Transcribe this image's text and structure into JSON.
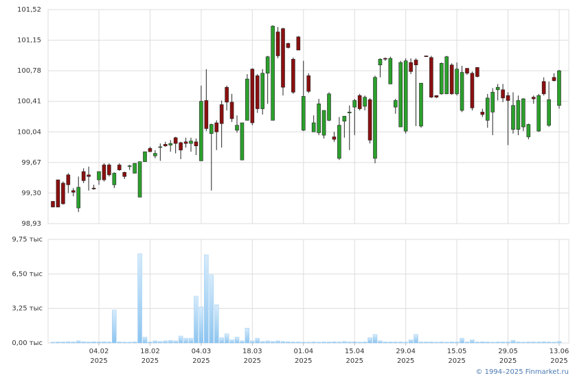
{
  "chart_data": {
    "type": "candlestick",
    "x": [
      "2025-01-22",
      "2025-01-23",
      "2025-01-24",
      "2025-01-27",
      "2025-01-28",
      "2025-01-29",
      "2025-01-30",
      "2025-01-31",
      "2025-02-03",
      "2025-02-04",
      "2025-02-05",
      "2025-02-06",
      "2025-02-07",
      "2025-02-10",
      "2025-02-11",
      "2025-02-12",
      "2025-02-13",
      "2025-02-14",
      "2025-02-17",
      "2025-02-18",
      "2025-02-19",
      "2025-02-20",
      "2025-02-21",
      "2025-02-24",
      "2025-02-25",
      "2025-02-26",
      "2025-02-27",
      "2025-02-28",
      "2025-03-03",
      "2025-03-04",
      "2025-03-05",
      "2025-03-06",
      "2025-03-07",
      "2025-03-10",
      "2025-03-11",
      "2025-03-12",
      "2025-03-13",
      "2025-03-14",
      "2025-03-17",
      "2025-03-18",
      "2025-03-19",
      "2025-03-20",
      "2025-03-21",
      "2025-03-24",
      "2025-03-25",
      "2025-03-26",
      "2025-03-27",
      "2025-03-28",
      "2025-03-31",
      "2025-04-01",
      "2025-04-02",
      "2025-04-03",
      "2025-04-04",
      "2025-04-07",
      "2025-04-08",
      "2025-04-09",
      "2025-04-10",
      "2025-04-11",
      "2025-04-14",
      "2025-04-15",
      "2025-04-16",
      "2025-04-17",
      "2025-04-18",
      "2025-04-21",
      "2025-04-22",
      "2025-04-23",
      "2025-04-24",
      "2025-04-25",
      "2025-04-28",
      "2025-04-29",
      "2025-04-30",
      "2025-05-02",
      "2025-05-05",
      "2025-05-06",
      "2025-05-07",
      "2025-05-08",
      "2025-05-12",
      "2025-05-13",
      "2025-05-14",
      "2025-05-15",
      "2025-05-16",
      "2025-05-19",
      "2025-05-20",
      "2025-05-21",
      "2025-05-22",
      "2025-05-23",
      "2025-05-26",
      "2025-05-27",
      "2025-05-28",
      "2025-05-29",
      "2025-05-30",
      "2025-06-02",
      "2025-06-03",
      "2025-06-04",
      "2025-06-05",
      "2025-06-06",
      "2025-06-09",
      "2025-06-10",
      "2025-06-11",
      "2025-06-13"
    ],
    "open": [
      99.2,
      99.46,
      99.42,
      99.52,
      99.33,
      99.12,
      99.56,
      99.52,
      99.36,
      99.46,
      99.64,
      99.64,
      99.4,
      99.64,
      99.55,
      99.62,
      99.54,
      99.25,
      99.68,
      99.84,
      99.75,
      99.86,
      99.89,
      99.88,
      99.97,
      99.91,
      99.92,
      99.9,
      99.92,
      99.69,
      100.42,
      100.02,
      100.15,
      100.37,
      100.58,
      100.4,
      100.06,
      99.7,
      100.18,
      100.8,
      100.72,
      100.32,
      100.75,
      100.18,
      101.25,
      101.29,
      101.11,
      100.92,
      101.19,
      100.06,
      100.72,
      100.04,
      100.03,
      100.0,
      100.18,
      99.98,
      99.72,
      100.17,
      100.27,
      100.34,
      100.48,
      100.35,
      100.43,
      99.72,
      100.85,
      100.93,
      100.62,
      100.34,
      100.1,
      100.05,
      100.88,
      100.91,
      100.11,
      100.96,
      100.94,
      100.48,
      100.5,
      100.5,
      100.85,
      100.5,
      100.3,
      100.81,
      100.75,
      100.82,
      100.28,
      100.18,
      100.28,
      100.55,
      100.55,
      100.48,
      100.07,
      100.07,
      100.1,
      99.98,
      100.46,
      100.05,
      100.65,
      100.12,
      100.7,
      100.36
    ],
    "high": [
      99.2,
      99.46,
      99.44,
      99.54,
      99.36,
      99.5,
      99.6,
      99.62,
      99.4,
      99.56,
      99.66,
      99.66,
      99.55,
      99.66,
      99.56,
      99.64,
      99.66,
      99.68,
      99.8,
      99.86,
      99.82,
      99.9,
      99.92,
      99.94,
      99.98,
      99.92,
      99.97,
      99.97,
      99.96,
      100.6,
      100.8,
      100.14,
      100.18,
      100.42,
      100.6,
      100.5,
      100.24,
      100.15,
      100.74,
      100.81,
      100.74,
      100.8,
      100.96,
      101.33,
      101.31,
      101.3,
      101.12,
      100.94,
      101.2,
      100.9,
      100.75,
      100.24,
      100.44,
      100.3,
      100.52,
      100.04,
      100.22,
      100.23,
      100.36,
      100.44,
      100.5,
      100.48,
      100.45,
      100.72,
      100.93,
      100.94,
      100.95,
      100.44,
      100.9,
      100.93,
      100.93,
      100.93,
      100.63,
      100.96,
      100.96,
      100.48,
      100.88,
      100.96,
      100.87,
      100.88,
      100.84,
      100.81,
      100.77,
      100.82,
      100.32,
      100.5,
      100.57,
      100.62,
      100.62,
      100.52,
      100.52,
      100.48,
      100.45,
      100.14,
      100.48,
      100.5,
      100.7,
      100.65,
      100.75,
      100.79
    ],
    "low": [
      99.13,
      99.13,
      99.16,
      99.3,
      99.26,
      99.07,
      99.42,
      99.33,
      99.34,
      99.4,
      99.44,
      99.5,
      99.36,
      99.57,
      99.47,
      99.58,
      99.54,
      99.25,
      99.68,
      99.8,
      99.72,
      99.69,
      99.86,
      99.8,
      99.78,
      99.71,
      99.85,
      99.8,
      99.76,
      99.69,
      100.05,
      99.33,
      99.82,
      99.85,
      100.3,
      100.16,
      100.03,
      99.7,
      100.18,
      100.12,
      100.27,
      100.25,
      100.38,
      100.18,
      100.93,
      100.48,
      101.05,
      100.5,
      101.03,
      100.05,
      100.51,
      100.04,
      100.0,
      99.96,
      100.17,
      99.92,
      99.7,
      99.97,
      99.82,
      100.0,
      100.3,
      100.3,
      99.9,
      99.66,
      100.7,
      100.9,
      100.62,
      100.26,
      100.1,
      100.02,
      100.74,
      100.11,
      100.09,
      100.95,
      100.45,
      100.45,
      100.49,
      100.5,
      100.49,
      100.48,
      100.28,
      100.73,
      100.3,
      100.7,
      100.22,
      100.09,
      100.0,
      100.42,
      100.4,
      99.88,
      100.02,
      100.0,
      100.05,
      99.95,
      100.38,
      100.04,
      100.48,
      100.1,
      100.65,
      100.32
    ],
    "close": [
      99.13,
      99.13,
      99.17,
      99.4,
      99.31,
      99.37,
      99.45,
      99.5,
      99.35,
      99.56,
      99.46,
      99.52,
      99.54,
      99.58,
      99.5,
      99.63,
      99.66,
      99.68,
      99.8,
      99.8,
      99.78,
      99.86,
      99.87,
      99.9,
      99.9,
      99.82,
      99.9,
      99.93,
      99.87,
      100.41,
      100.08,
      100.13,
      100.04,
      100.14,
      100.4,
      100.2,
      100.12,
      100.15,
      100.68,
      100.15,
      100.32,
      100.75,
      100.95,
      101.32,
      100.96,
      100.58,
      101.06,
      100.52,
      101.03,
      100.47,
      100.53,
      100.15,
      100.38,
      100.3,
      100.5,
      99.95,
      100.12,
      100.23,
      100.28,
      100.42,
      100.32,
      100.46,
      99.94,
      100.7,
      100.92,
      100.92,
      100.93,
      100.42,
      100.88,
      100.9,
      100.77,
      100.85,
      100.63,
      100.95,
      100.46,
      100.46,
      100.87,
      100.95,
      100.5,
      100.8,
      100.76,
      100.75,
      100.33,
      100.71,
      100.25,
      100.45,
      100.52,
      100.58,
      100.45,
      100.42,
      100.36,
      100.42,
      100.44,
      100.13,
      100.44,
      100.48,
      100.5,
      100.43,
      100.66,
      100.78
    ],
    "volume": [
      0.08,
      0.1,
      0.1,
      0.12,
      0.1,
      0.2,
      0.12,
      0.1,
      0.12,
      0.1,
      0.12,
      0.1,
      3.1,
      0.1,
      0.08,
      0.08,
      0.1,
      8.4,
      0.55,
      0.1,
      0.2,
      0.15,
      0.2,
      0.25,
      0.2,
      0.65,
      0.45,
      0.45,
      4.4,
      3.4,
      8.3,
      6.4,
      3.6,
      0.5,
      0.85,
      0.3,
      0.55,
      0.2,
      1.4,
      0.2,
      0.45,
      0.15,
      0.2,
      0.15,
      0.2,
      0.15,
      0.12,
      0.1,
      0.1,
      0.08,
      0.08,
      0.1,
      0.08,
      0.1,
      0.1,
      0.12,
      0.1,
      0.15,
      0.1,
      0.12,
      0.08,
      0.1,
      0.5,
      0.8,
      0.2,
      0.1,
      0.1,
      0.1,
      0.1,
      0.08,
      0.3,
      0.8,
      0.1,
      0.1,
      0.1,
      0.08,
      0.1,
      0.08,
      0.1,
      0.1,
      0.45,
      0.1,
      0.3,
      0.1,
      0.12,
      0.1,
      0.08,
      0.1,
      0.1,
      0.1,
      0.25,
      0.1,
      0.08,
      0.1,
      0.1,
      0.1,
      0.12,
      0.1,
      0.08,
      0.15
    ],
    "up_color": "#2ca02c",
    "down_color": "#8b1010",
    "volume_color": "#8cc4ef",
    "ylim": [
      98.93,
      101.52
    ],
    "yticks": [
      {
        "value": 98.93,
        "label": "98,93"
      },
      {
        "value": 99.3,
        "label": "99,30"
      },
      {
        "value": 99.67,
        "label": "99,67"
      },
      {
        "value": 100.04,
        "label": "100,04"
      },
      {
        "value": 100.41,
        "label": "100,41"
      },
      {
        "value": 100.78,
        "label": "100,78"
      },
      {
        "value": 101.15,
        "label": "101,15"
      },
      {
        "value": 101.52,
        "label": "101,52"
      }
    ],
    "volume_ylim": [
      0,
      9.75
    ],
    "volume_yticks": [
      {
        "value": 0,
        "label": "0,00 тыс"
      },
      {
        "value": 3.25,
        "label": "3,25 тыс"
      },
      {
        "value": 6.5,
        "label": "6,50 тыс"
      },
      {
        "value": 9.75,
        "label": "9,75 тыс"
      }
    ],
    "xticks": [
      {
        "value": "2025-02-04",
        "label": "04.02",
        "year": "2025"
      },
      {
        "value": "2025-02-18",
        "label": "18.02",
        "year": "2025"
      },
      {
        "value": "2025-03-04",
        "label": "04.03",
        "year": "2025"
      },
      {
        "value": "2025-03-18",
        "label": "18.03",
        "year": "2025"
      },
      {
        "value": "2025-04-01",
        "label": "01.04",
        "year": "2025"
      },
      {
        "value": "2025-04-15",
        "label": "15.04",
        "year": "2025"
      },
      {
        "value": "2025-04-29",
        "label": "29.04",
        "year": "2025"
      },
      {
        "value": "2025-05-15",
        "label": "15.05",
        "year": "2025"
      },
      {
        "value": "2025-05-29",
        "label": "29.05",
        "year": "2025"
      },
      {
        "value": "2025-06-13",
        "label": "13.06",
        "year": "2025"
      }
    ],
    "grid": true,
    "credit": "© 1994–2025 Finmarket.ru"
  }
}
